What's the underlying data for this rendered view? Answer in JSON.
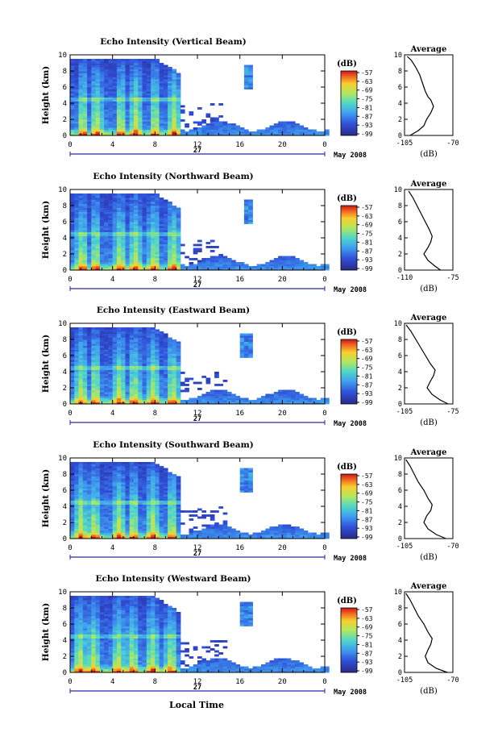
{
  "figure": {
    "xaxis_title": "Local Time",
    "date_day": "27",
    "date_month_year": "May 2008",
    "y_label": "Height (km)",
    "colorbar_unit": "(dB)",
    "avg_title": "Average",
    "avg_xlabel": "(dB)"
  },
  "chart_data": [
    {
      "type": "heatmap",
      "title": "Echo Intensity (Vertical Beam)",
      "xlim": [
        0,
        24
      ],
      "xticks": [
        "0",
        "4",
        "8",
        "12",
        "16",
        "20",
        "0"
      ],
      "ylim": [
        0,
        10
      ],
      "yticks": [
        "0",
        "2",
        "4",
        "6",
        "8",
        "10"
      ],
      "colorbar": {
        "min": -99,
        "max": -57,
        "ticks": [
          "-57",
          "-63",
          "-69",
          "-75",
          "-81",
          "-87",
          "-93",
          "-99"
        ]
      },
      "average": {
        "xlim": [
          -105,
          -70
        ],
        "xticks": [
          "-105",
          "-70"
        ],
        "yticks": [
          "0",
          "2",
          "4",
          "6",
          "8",
          "10"
        ],
        "profile": [
          [
            -101,
            0
          ],
          [
            -95,
            0.6
          ],
          [
            -91,
            1.2
          ],
          [
            -89,
            2
          ],
          [
            -86,
            2.8
          ],
          [
            -85,
            3.2
          ],
          [
            -84,
            3.6
          ],
          [
            -85,
            4
          ],
          [
            -86,
            4.4
          ],
          [
            -88,
            4.8
          ],
          [
            -90,
            5.5
          ],
          [
            -92,
            6.5
          ],
          [
            -94,
            7.5
          ],
          [
            -97,
            8.5
          ],
          [
            -100,
            9.3
          ],
          [
            -103,
            9.8
          ]
        ]
      }
    },
    {
      "type": "heatmap",
      "title": "Echo Intensity (Northward Beam)",
      "xlim": [
        0,
        24
      ],
      "xticks": [
        "0",
        "4",
        "8",
        "12",
        "16",
        "20",
        "0"
      ],
      "ylim": [
        0,
        10
      ],
      "yticks": [
        "0",
        "2",
        "4",
        "6",
        "8",
        "10"
      ],
      "colorbar": {
        "min": -99,
        "max": -57,
        "ticks": [
          "-57",
          "-63",
          "-69",
          "-75",
          "-81",
          "-87",
          "-93",
          "-99"
        ]
      },
      "average": {
        "xlim": [
          -110,
          -75
        ],
        "xticks": [
          "-110",
          "-75"
        ],
        "yticks": [
          "0",
          "2",
          "4",
          "6",
          "8",
          "10"
        ],
        "profile": [
          [
            -84,
            0
          ],
          [
            -88,
            0.5
          ],
          [
            -93,
            1.2
          ],
          [
            -96,
            2
          ],
          [
            -93,
            2.8
          ],
          [
            -91,
            3.5
          ],
          [
            -90,
            4.2
          ],
          [
            -92,
            5
          ],
          [
            -95,
            6
          ],
          [
            -98,
            7
          ],
          [
            -101,
            8
          ],
          [
            -104,
            9
          ],
          [
            -107,
            9.8
          ]
        ]
      }
    },
    {
      "type": "heatmap",
      "title": "Echo Intensity (Eastward Beam)",
      "xlim": [
        0,
        24
      ],
      "xticks": [
        "0",
        "4",
        "8",
        "12",
        "16",
        "20",
        "0"
      ],
      "ylim": [
        0,
        10
      ],
      "yticks": [
        "0",
        "2",
        "4",
        "6",
        "8",
        "10"
      ],
      "colorbar": {
        "min": -99,
        "max": -57,
        "ticks": [
          "-57",
          "-63",
          "-69",
          "-75",
          "-81",
          "-87",
          "-93",
          "-99"
        ]
      },
      "average": {
        "xlim": [
          -105,
          -75
        ],
        "xticks": [
          "-105",
          "-75"
        ],
        "yticks": [
          "0",
          "2",
          "4",
          "6",
          "8",
          "10"
        ],
        "profile": [
          [
            -78,
            0
          ],
          [
            -83,
            0.5
          ],
          [
            -88,
            1.2
          ],
          [
            -91,
            2
          ],
          [
            -89,
            2.8
          ],
          [
            -87,
            3.5
          ],
          [
            -86,
            4.2
          ],
          [
            -89,
            5
          ],
          [
            -92,
            6
          ],
          [
            -95,
            7
          ],
          [
            -98,
            8
          ],
          [
            -101,
            9
          ],
          [
            -104,
            9.8
          ]
        ]
      }
    },
    {
      "type": "heatmap",
      "title": "Echo Intensity (Southward Beam)",
      "xlim": [
        0,
        24
      ],
      "xticks": [
        "0",
        "4",
        "8",
        "12",
        "16",
        "20",
        "0"
      ],
      "ylim": [
        0,
        10
      ],
      "yticks": [
        "0",
        "2",
        "4",
        "6",
        "8",
        "10"
      ],
      "colorbar": {
        "min": -99,
        "max": -57,
        "ticks": [
          "-57",
          "-63",
          "-69",
          "-75",
          "-81",
          "-87",
          "-93",
          "-99"
        ]
      },
      "average": {
        "xlim": [
          -105,
          -70
        ],
        "xticks": [
          "-105",
          "-70"
        ],
        "yticks": [
          "0",
          "2",
          "4",
          "6",
          "8",
          "10"
        ],
        "profile": [
          [
            -75,
            0
          ],
          [
            -82,
            0.5
          ],
          [
            -88,
            1.2
          ],
          [
            -91,
            2
          ],
          [
            -89,
            2.8
          ],
          [
            -86,
            3.5
          ],
          [
            -85,
            4.2
          ],
          [
            -88,
            5
          ],
          [
            -91,
            6
          ],
          [
            -95,
            7
          ],
          [
            -98,
            8
          ],
          [
            -101,
            9
          ],
          [
            -104,
            9.8
          ]
        ]
      }
    },
    {
      "type": "heatmap",
      "title": "Echo Intensity (Westward Beam)",
      "xlim": [
        0,
        24
      ],
      "xticks": [
        "0",
        "4",
        "8",
        "12",
        "16",
        "20",
        "0"
      ],
      "ylim": [
        0,
        10
      ],
      "yticks": [
        "0",
        "2",
        "4",
        "6",
        "8",
        "10"
      ],
      "colorbar": {
        "min": -99,
        "max": -57,
        "ticks": [
          "-57",
          "-63",
          "-69",
          "-75",
          "-81",
          "-87",
          "-93",
          "-99"
        ]
      },
      "average": {
        "xlim": [
          -105,
          -70
        ],
        "xticks": [
          "-105",
          "-70"
        ],
        "yticks": [
          "0",
          "2",
          "4",
          "6",
          "8",
          "10"
        ],
        "profile": [
          [
            -74,
            0
          ],
          [
            -82,
            0.5
          ],
          [
            -88,
            1.2
          ],
          [
            -90,
            2
          ],
          [
            -88,
            2.8
          ],
          [
            -86,
            3.5
          ],
          [
            -85,
            4.2
          ],
          [
            -88,
            5
          ],
          [
            -91,
            6
          ],
          [
            -95,
            7
          ],
          [
            -98,
            8
          ],
          [
            -101,
            9
          ],
          [
            -104,
            9.8
          ]
        ]
      }
    }
  ]
}
